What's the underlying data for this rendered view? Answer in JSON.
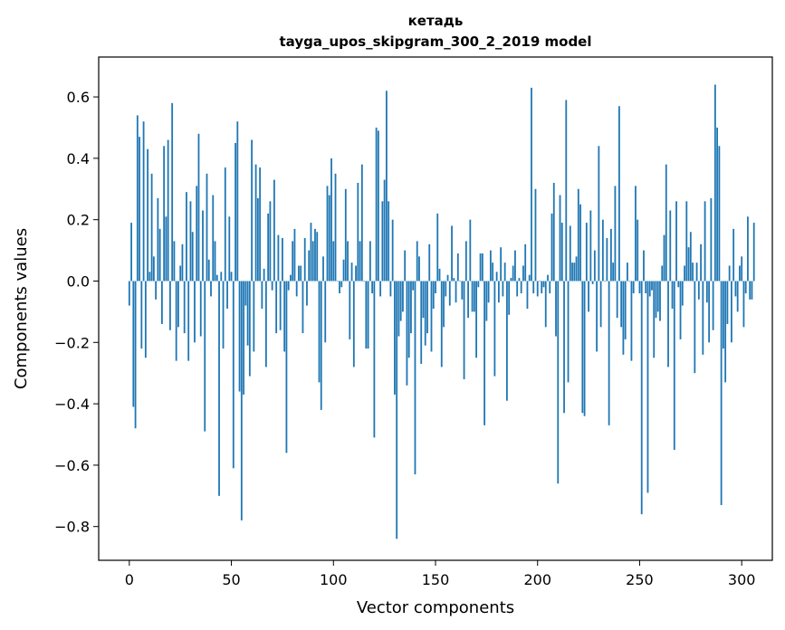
{
  "chart_data": {
    "type": "bar",
    "title_line1": "кетадь",
    "title_line2": "tayga_upos_skipgram_300_2_2019 model",
    "xlabel": "Vector components",
    "ylabel": "Components values",
    "xlim": [
      -15,
      315
    ],
    "ylim": [
      -0.91,
      0.73
    ],
    "xticks": [
      0,
      50,
      100,
      150,
      200,
      250,
      300
    ],
    "yticks": [
      0.6,
      0.4,
      0.2,
      0.0,
      -0.2,
      -0.4,
      -0.6,
      -0.8
    ],
    "ytick_labels": [
      "0.6",
      "0.4",
      "0.2",
      "0.0",
      "−0.2",
      "−0.4",
      "−0.6",
      "−0.8"
    ],
    "bar_color": "#1f77b4",
    "values": [
      -0.08,
      0.19,
      -0.41,
      -0.48,
      0.54,
      0.47,
      -0.22,
      0.52,
      -0.25,
      0.43,
      0.03,
      0.35,
      0.08,
      -0.06,
      0.27,
      0.17,
      -0.14,
      0.44,
      0.21,
      0.46,
      -0.16,
      0.58,
      0.13,
      -0.26,
      -0.15,
      0.05,
      0.12,
      -0.17,
      0.29,
      -0.26,
      0.26,
      0.16,
      -0.2,
      0.31,
      0.48,
      -0.18,
      0.23,
      -0.49,
      0.35,
      0.07,
      -0.05,
      0.28,
      0.13,
      0.02,
      -0.7,
      0.03,
      -0.22,
      0.37,
      -0.09,
      0.21,
      0.03,
      -0.61,
      0.45,
      0.52,
      -0.36,
      -0.78,
      -0.37,
      -0.08,
      -0.21,
      -0.31,
      0.46,
      -0.23,
      0.38,
      0.27,
      0.37,
      -0.09,
      0.04,
      -0.28,
      0.22,
      0.26,
      -0.03,
      0.33,
      -0.17,
      0.15,
      -0.16,
      0.14,
      -0.23,
      -0.56,
      -0.03,
      0.02,
      0.13,
      0.17,
      -0.05,
      0.05,
      0.05,
      -0.17,
      0.14,
      -0.08,
      0.1,
      0.19,
      0.13,
      0.17,
      0.16,
      -0.33,
      -0.42,
      0.08,
      -0.2,
      0.31,
      0.28,
      0.4,
      0.13,
      0.35,
      0.0,
      -0.04,
      -0.02,
      0.07,
      0.3,
      0.13,
      -0.19,
      0.06,
      -0.28,
      0.05,
      0.32,
      0.13,
      0.38,
      0.0,
      -0.22,
      -0.22,
      0.13,
      -0.04,
      -0.51,
      0.5,
      0.49,
      -0.05,
      0.26,
      0.33,
      0.62,
      0.26,
      -0.05,
      0.2,
      -0.37,
      -0.84,
      -0.18,
      -0.13,
      -0.1,
      0.1,
      -0.34,
      -0.25,
      -0.17,
      -0.03,
      -0.63,
      0.13,
      0.08,
      -0.27,
      -0.12,
      -0.21,
      -0.17,
      0.12,
      -0.23,
      -0.09,
      -0.04,
      0.22,
      0.04,
      -0.28,
      -0.15,
      -0.05,
      0.02,
      -0.08,
      0.18,
      0.01,
      -0.07,
      0.09,
      0.0,
      -0.06,
      -0.32,
      0.13,
      -0.12,
      0.2,
      -0.1,
      -0.1,
      -0.25,
      -0.02,
      0.09,
      0.09,
      -0.47,
      -0.13,
      -0.07,
      0.1,
      0.06,
      -0.31,
      0.03,
      -0.07,
      0.11,
      -0.05,
      0.06,
      -0.39,
      -0.11,
      0.01,
      0.05,
      0.1,
      -0.05,
      0.01,
      -0.04,
      0.05,
      0.12,
      -0.09,
      0.02,
      0.63,
      -0.04,
      0.3,
      -0.05,
      0.0,
      -0.04,
      -0.02,
      -0.15,
      0.02,
      -0.04,
      0.22,
      0.32,
      -0.18,
      -0.66,
      0.28,
      0.19,
      -0.43,
      0.59,
      -0.33,
      0.18,
      0.06,
      0.06,
      0.08,
      0.3,
      0.25,
      -0.43,
      -0.44,
      0.19,
      -0.1,
      0.23,
      -0.01,
      0.1,
      -0.23,
      0.44,
      -0.15,
      0.2,
      0.0,
      0.14,
      -0.47,
      0.17,
      0.06,
      0.31,
      -0.12,
      0.57,
      -0.15,
      -0.24,
      -0.19,
      0.06,
      0.0,
      -0.26,
      -0.04,
      0.31,
      0.2,
      -0.04,
      -0.76,
      0.1,
      -0.04,
      -0.69,
      -0.05,
      -0.03,
      -0.25,
      -0.12,
      -0.1,
      -0.13,
      0.05,
      0.15,
      0.38,
      -0.28,
      0.23,
      -0.09,
      -0.55,
      0.26,
      -0.02,
      -0.19,
      -0.08,
      0.05,
      0.26,
      0.11,
      0.16,
      0.06,
      -0.3,
      0.06,
      -0.06,
      0.12,
      -0.24,
      0.26,
      -0.07,
      -0.2,
      0.27,
      -0.16,
      0.64,
      0.5,
      0.44,
      -0.73,
      -0.22,
      -0.33,
      -0.14,
      0.05,
      -0.2,
      0.17,
      -0.05,
      -0.1,
      0.05,
      0.08,
      -0.15,
      -0.04,
      0.21,
      -0.06,
      -0.06,
      0.19
    ]
  }
}
